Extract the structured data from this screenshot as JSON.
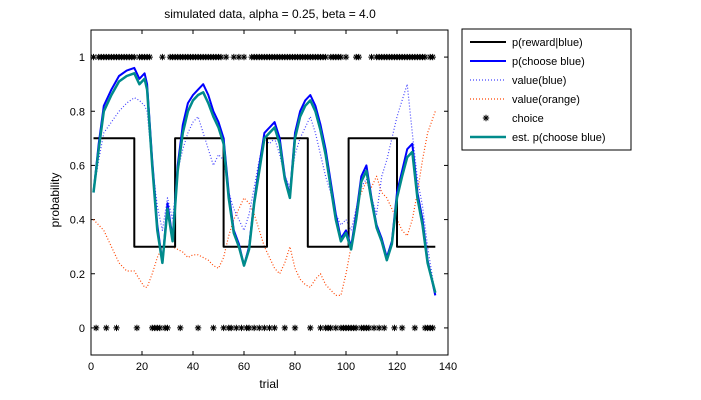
{
  "chart_data": {
    "type": "line",
    "title": "simulated data, alpha = 0.25, beta = 4.0",
    "xlabel": "trial",
    "ylabel": "probability",
    "xlim": [
      0,
      140
    ],
    "ylim": [
      -0.1,
      1.1
    ],
    "x_ticks": [
      "0",
      "20",
      "40",
      "60",
      "80",
      "100",
      "120",
      "140"
    ],
    "y_ticks": [
      "0",
      "0.2",
      "0.4",
      "0.6",
      "0.8",
      "1"
    ],
    "legend_placement": "outside-top-right",
    "series": [
      {
        "name": "p(reward|blue)",
        "kind": "step",
        "color": "#000000",
        "x": [
          1,
          17,
          17,
          33,
          33,
          52,
          52,
          69,
          69,
          85,
          85,
          101,
          101,
          120,
          120,
          135
        ],
        "y": [
          0.7,
          0.7,
          0.3,
          0.3,
          0.7,
          0.7,
          0.3,
          0.3,
          0.7,
          0.7,
          0.3,
          0.3,
          0.7,
          0.7,
          0.3,
          0.3
        ]
      },
      {
        "name": "p(choose blue)",
        "color": "#0000ff",
        "x": [
          1,
          3,
          5,
          8,
          11,
          14,
          17,
          19,
          21,
          22,
          24,
          26,
          28,
          30,
          32,
          34,
          36,
          38,
          40,
          42,
          44,
          46,
          48,
          50,
          52,
          54,
          56,
          58,
          60,
          62,
          64,
          66,
          68,
          70,
          72,
          74,
          76,
          78,
          80,
          82,
          84,
          86,
          88,
          90,
          92,
          94,
          96,
          98,
          100,
          102,
          104,
          106,
          108,
          110,
          112,
          114,
          116,
          118,
          120,
          122,
          124,
          126,
          128,
          130,
          132,
          135
        ],
        "y": [
          0.5,
          0.68,
          0.82,
          0.88,
          0.93,
          0.95,
          0.96,
          0.92,
          0.94,
          0.9,
          0.62,
          0.38,
          0.24,
          0.46,
          0.33,
          0.6,
          0.75,
          0.83,
          0.86,
          0.88,
          0.9,
          0.86,
          0.8,
          0.76,
          0.7,
          0.5,
          0.36,
          0.31,
          0.23,
          0.3,
          0.47,
          0.6,
          0.72,
          0.74,
          0.76,
          0.7,
          0.56,
          0.49,
          0.72,
          0.8,
          0.84,
          0.86,
          0.82,
          0.75,
          0.66,
          0.54,
          0.42,
          0.33,
          0.36,
          0.3,
          0.42,
          0.56,
          0.6,
          0.48,
          0.38,
          0.33,
          0.26,
          0.32,
          0.5,
          0.58,
          0.66,
          0.68,
          0.5,
          0.4,
          0.25,
          0.12
        ]
      },
      {
        "name": "value(blue)",
        "color": "#4444ff",
        "x": [
          1,
          3,
          5,
          8,
          11,
          14,
          17,
          19,
          21,
          22,
          24,
          26,
          28,
          30,
          32,
          34,
          36,
          38,
          40,
          42,
          44,
          46,
          48,
          50,
          52,
          54,
          56,
          58,
          60,
          62,
          64,
          66,
          68,
          70,
          72,
          74,
          76,
          78,
          80,
          82,
          84,
          86,
          88,
          90,
          92,
          94,
          96,
          98,
          100,
          102,
          104,
          106,
          108,
          110,
          112,
          114,
          116,
          118,
          120,
          122,
          124,
          126,
          128,
          130,
          132,
          135
        ],
        "y": [
          0.5,
          0.62,
          0.72,
          0.76,
          0.8,
          0.83,
          0.85,
          0.84,
          0.82,
          0.8,
          0.6,
          0.45,
          0.36,
          0.48,
          0.4,
          0.58,
          0.66,
          0.72,
          0.76,
          0.78,
          0.72,
          0.66,
          0.6,
          0.64,
          0.62,
          0.5,
          0.44,
          0.4,
          0.36,
          0.42,
          0.52,
          0.62,
          0.7,
          0.68,
          0.7,
          0.64,
          0.56,
          0.52,
          0.64,
          0.7,
          0.74,
          0.78,
          0.72,
          0.64,
          0.56,
          0.5,
          0.42,
          0.38,
          0.4,
          0.36,
          0.44,
          0.52,
          0.55,
          0.48,
          0.42,
          0.56,
          0.62,
          0.7,
          0.78,
          0.84,
          0.9,
          0.72,
          0.55,
          0.45,
          0.3,
          0.12
        ]
      },
      {
        "name": "value(orange)",
        "color": "#ff4400",
        "x": [
          1,
          3,
          5,
          8,
          11,
          14,
          17,
          19,
          21,
          22,
          24,
          26,
          28,
          30,
          32,
          34,
          36,
          38,
          40,
          42,
          44,
          46,
          48,
          50,
          52,
          54,
          56,
          58,
          60,
          62,
          64,
          66,
          68,
          70,
          72,
          74,
          76,
          78,
          80,
          82,
          84,
          86,
          88,
          90,
          92,
          94,
          96,
          98,
          100,
          102,
          104,
          106,
          108,
          110,
          112,
          114,
          116,
          118,
          120,
          122,
          124,
          126,
          128,
          130,
          132,
          135
        ],
        "y": [
          0.4,
          0.38,
          0.36,
          0.3,
          0.24,
          0.21,
          0.21,
          0.18,
          0.15,
          0.15,
          0.2,
          0.26,
          0.3,
          0.3,
          0.3,
          0.29,
          0.28,
          0.26,
          0.27,
          0.27,
          0.26,
          0.25,
          0.23,
          0.22,
          0.26,
          0.34,
          0.4,
          0.44,
          0.48,
          0.46,
          0.42,
          0.36,
          0.3,
          0.26,
          0.22,
          0.2,
          0.24,
          0.3,
          0.22,
          0.18,
          0.16,
          0.15,
          0.18,
          0.2,
          0.16,
          0.14,
          0.12,
          0.12,
          0.2,
          0.3,
          0.44,
          0.5,
          0.54,
          0.52,
          0.56,
          0.5,
          0.48,
          0.44,
          0.4,
          0.36,
          0.34,
          0.4,
          0.5,
          0.62,
          0.72,
          0.8
        ]
      },
      {
        "name": "choice",
        "kind": "markers",
        "marker": "*",
        "color": "#000000",
        "x_at_1": [
          1,
          3,
          4,
          5,
          6,
          7,
          8,
          9,
          10,
          11,
          12,
          13,
          14,
          15,
          16,
          17,
          19,
          20,
          21,
          22,
          23,
          28,
          31,
          32,
          33,
          34,
          35,
          36,
          37,
          38,
          39,
          40,
          41,
          42,
          43,
          44,
          45,
          46,
          47,
          48,
          49,
          50,
          51,
          53,
          56,
          58,
          60,
          63,
          64,
          65,
          66,
          67,
          68,
          69,
          70,
          71,
          72,
          73,
          74,
          75,
          76,
          77,
          78,
          79,
          80,
          81,
          82,
          83,
          84,
          85,
          86,
          87,
          88,
          89,
          90,
          91,
          92,
          94,
          95,
          96,
          97,
          98,
          100,
          104,
          105,
          110,
          112,
          113,
          114,
          115,
          116,
          117,
          118,
          119,
          120,
          121,
          122,
          123,
          124,
          125,
          126,
          127,
          128,
          129,
          130,
          131,
          133,
          134
        ],
        "x_at_0": [
          2,
          6,
          10,
          18,
          24,
          25,
          26,
          27,
          29,
          30,
          35,
          42,
          48,
          52,
          54,
          55,
          57,
          59,
          61,
          62,
          64,
          66,
          68,
          70,
          72,
          76,
          80,
          86,
          90,
          92,
          93,
          94,
          96,
          98,
          99,
          100,
          101,
          102,
          103,
          104,
          106,
          107,
          108,
          109,
          111,
          113,
          115,
          119,
          122,
          127,
          131,
          132,
          133,
          134
        ]
      },
      {
        "name": "est. p(choose blue)",
        "color": "#008b8b",
        "x": [
          1,
          3,
          5,
          8,
          11,
          14,
          17,
          19,
          21,
          22,
          24,
          26,
          28,
          30,
          32,
          34,
          36,
          38,
          40,
          42,
          44,
          46,
          48,
          50,
          52,
          54,
          56,
          58,
          60,
          62,
          64,
          66,
          68,
          70,
          72,
          74,
          76,
          78,
          80,
          82,
          84,
          86,
          88,
          90,
          92,
          94,
          96,
          98,
          100,
          102,
          104,
          106,
          108,
          110,
          112,
          114,
          116,
          118,
          120,
          122,
          124,
          126,
          128,
          130,
          132,
          135
        ],
        "y": [
          0.5,
          0.66,
          0.8,
          0.86,
          0.91,
          0.93,
          0.94,
          0.9,
          0.92,
          0.88,
          0.6,
          0.36,
          0.24,
          0.44,
          0.32,
          0.58,
          0.72,
          0.8,
          0.84,
          0.86,
          0.87,
          0.83,
          0.78,
          0.74,
          0.68,
          0.48,
          0.35,
          0.3,
          0.23,
          0.29,
          0.46,
          0.58,
          0.7,
          0.72,
          0.74,
          0.68,
          0.55,
          0.48,
          0.7,
          0.78,
          0.82,
          0.84,
          0.8,
          0.73,
          0.64,
          0.52,
          0.4,
          0.32,
          0.35,
          0.29,
          0.4,
          0.54,
          0.58,
          0.47,
          0.37,
          0.32,
          0.25,
          0.31,
          0.48,
          0.56,
          0.63,
          0.65,
          0.48,
          0.38,
          0.24,
          0.13
        ]
      }
    ]
  },
  "legend": {
    "entries": [
      {
        "label": "p(reward|blue)",
        "color": "#000000",
        "dash": "",
        "width": 2,
        "symbol": "line",
        "icon": "solid-black-line-icon"
      },
      {
        "label": "p(choose blue)",
        "color": "#0000ff",
        "dash": "",
        "width": 2,
        "symbol": "line",
        "icon": "solid-blue-line-icon"
      },
      {
        "label": "value(blue)",
        "color": "#4444ff",
        "dash": "1 2",
        "width": 1.2,
        "symbol": "line",
        "icon": "dotted-blue-line-icon"
      },
      {
        "label": "value(orange)",
        "color": "#ff4400",
        "dash": "1 2",
        "width": 1.2,
        "symbol": "line",
        "icon": "dotted-orange-line-icon"
      },
      {
        "label": "choice",
        "color": "#000000",
        "dash": "",
        "width": 1,
        "symbol": "star",
        "icon": "star-marker-icon"
      },
      {
        "label": "est. p(choose blue)",
        "color": "#008b8b",
        "dash": "",
        "width": 2.5,
        "symbol": "line",
        "icon": "solid-teal-line-icon"
      }
    ]
  }
}
